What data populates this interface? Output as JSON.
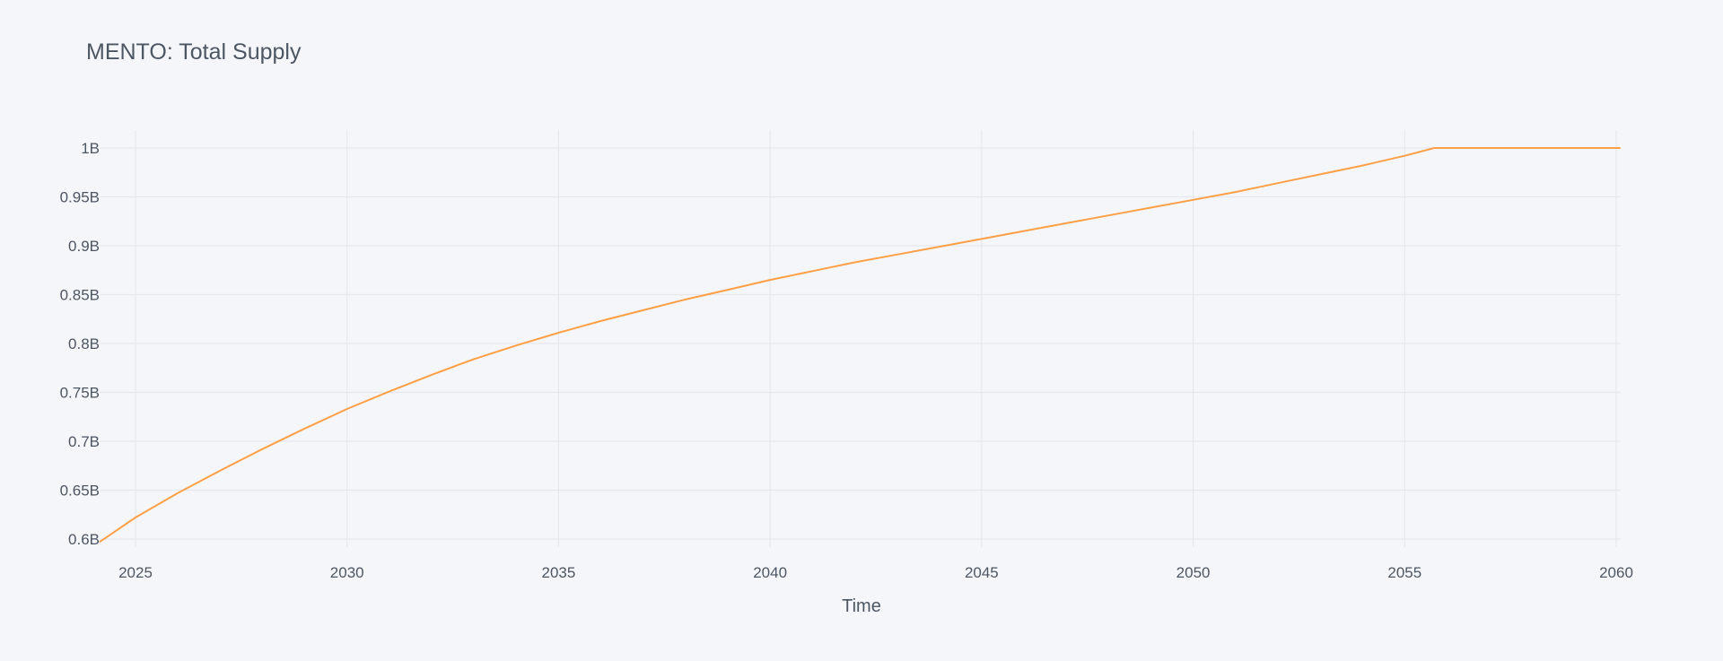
{
  "chart_data": {
    "type": "line",
    "title": "MENTO: Total Supply",
    "xlabel": "Time",
    "ylabel": "",
    "grid": true,
    "x_tick_labels": [
      "2025",
      "2030",
      "2035",
      "2040",
      "2045",
      "2050",
      "2055",
      "2060"
    ],
    "y_tick_labels": [
      "0.6B",
      "0.65B",
      "0.7B",
      "0.75B",
      "0.8B",
      "0.85B",
      "0.9B",
      "0.95B",
      "1B"
    ],
    "xlim": [
      2024.15,
      2060.1
    ],
    "ylim": [
      0.59,
      1.0
    ],
    "series": [
      {
        "color": "#ffa046",
        "x": [
          2024.15,
          2025,
          2026,
          2027,
          2028,
          2029,
          2030,
          2031,
          2032,
          2033,
          2034,
          2035,
          2036,
          2037,
          2038,
          2039,
          2040,
          2041,
          2042,
          2043,
          2044,
          2045,
          2046,
          2047,
          2048,
          2049,
          2050,
          2051,
          2052,
          2053,
          2054,
          2055,
          2055.7,
          2056,
          2057,
          2058,
          2059,
          2060.1
        ],
        "y": [
          0.597,
          0.622,
          0.647,
          0.67,
          0.692,
          0.713,
          0.733,
          0.751,
          0.768,
          0.784,
          0.798,
          0.811,
          0.823,
          0.834,
          0.845,
          0.855,
          0.865,
          0.874,
          0.883,
          0.891,
          0.899,
          0.907,
          0.915,
          0.923,
          0.931,
          0.939,
          0.947,
          0.955,
          0.964,
          0.973,
          0.982,
          0.992,
          1.0,
          1.0,
          1.0,
          1.0,
          1.0,
          1.0
        ]
      }
    ]
  }
}
